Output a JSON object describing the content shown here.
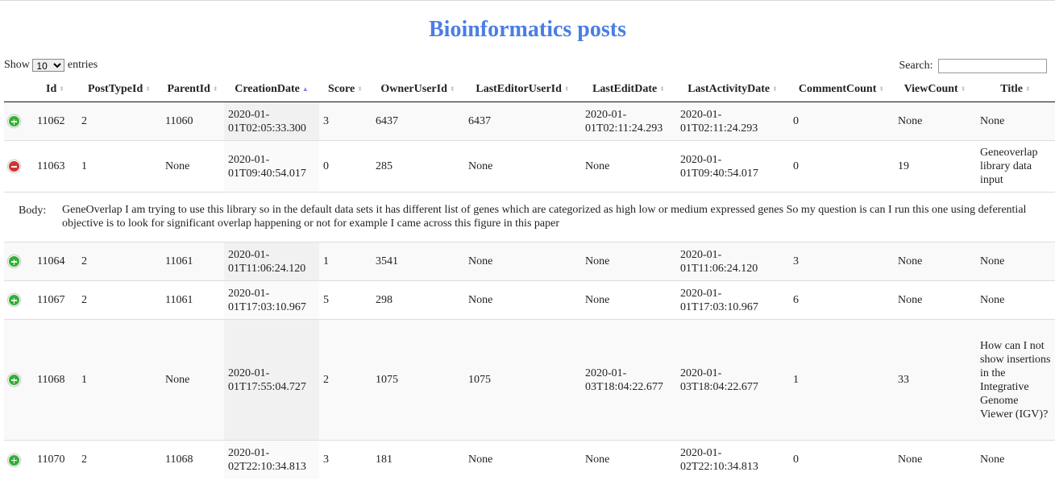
{
  "page": {
    "title": "Bioinformatics posts"
  },
  "length": {
    "prefix": "Show",
    "selected": "10",
    "suffix": "entries"
  },
  "search": {
    "label": "Search:",
    "value": ""
  },
  "columns": [
    "Id",
    "PostTypeId",
    "ParentId",
    "CreationDate",
    "Score",
    "OwnerUserId",
    "LastEditorUserId",
    "LastEditDate",
    "LastActivityDate",
    "CommentCount",
    "ViewCount",
    "Title"
  ],
  "sort": {
    "column": "CreationDate",
    "direction": "asc"
  },
  "rows": [
    {
      "expanded": false,
      "cells": [
        "11062",
        "2",
        "11060",
        "2020-01-01T02:05:33.300",
        "3",
        "6437",
        "6437",
        "2020-01-01T02:11:24.293",
        "2020-01-01T02:11:24.293",
        "0",
        "None",
        "None"
      ]
    },
    {
      "expanded": true,
      "cells": [
        "11063",
        "1",
        "None",
        "2020-01-01T09:40:54.017",
        "0",
        "285",
        "None",
        "None",
        "2020-01-01T09:40:54.017",
        "0",
        "19",
        "Geneoverlap library data input"
      ]
    },
    {
      "expanded": false,
      "cells": [
        "11064",
        "2",
        "11061",
        "2020-01-01T11:06:24.120",
        "1",
        "3541",
        "None",
        "None",
        "2020-01-01T11:06:24.120",
        "3",
        "None",
        "None"
      ]
    },
    {
      "expanded": false,
      "cells": [
        "11067",
        "2",
        "11061",
        "2020-01-01T17:03:10.967",
        "5",
        "298",
        "None",
        "None",
        "2020-01-01T17:03:10.967",
        "6",
        "None",
        "None"
      ]
    },
    {
      "expanded": false,
      "cells": [
        "11068",
        "1",
        "None",
        "2020-01-01T17:55:04.727",
        "2",
        "1075",
        "1075",
        "2020-01-03T18:04:22.677",
        "2020-01-03T18:04:22.677",
        "1",
        "33",
        "How can I not show insertions in the Integrative Genome Viewer (IGV)?"
      ]
    },
    {
      "expanded": false,
      "cells": [
        "11070",
        "2",
        "11068",
        "2020-01-02T22:10:34.813",
        "3",
        "181",
        "None",
        "None",
        "2020-01-02T22:10:34.813",
        "0",
        "None",
        "None"
      ]
    }
  ],
  "child": {
    "label": "Body:",
    "line1": "GeneOverlap I am trying to use this library so in the default data sets it has different list of genes which are categorized as high low or medium expressed genes So my question is can I run this one using deferential",
    "line2": "objective is to look for significant overlap happening or not for example I came across this figure in this paper"
  }
}
